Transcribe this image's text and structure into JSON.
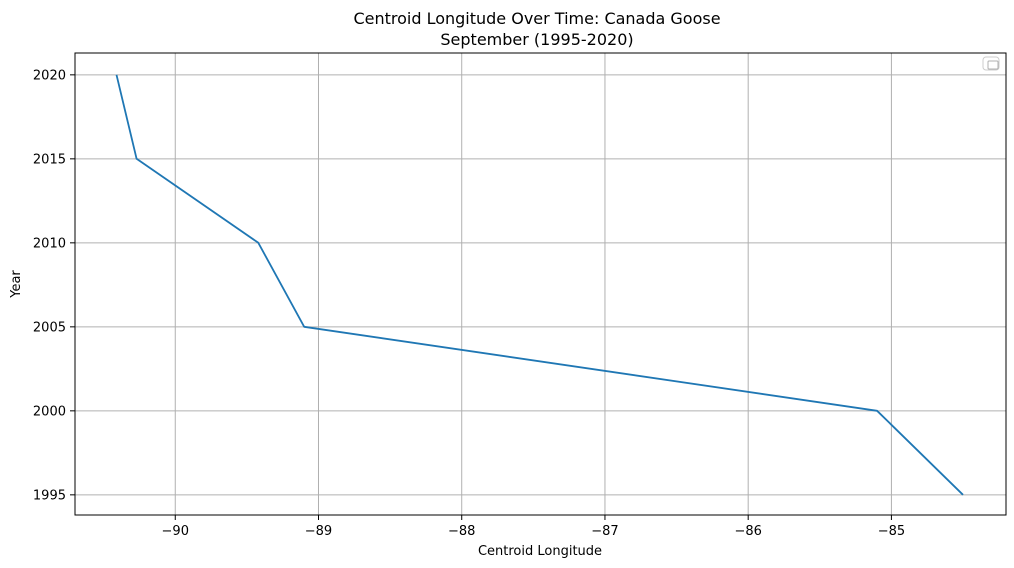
{
  "chart_data": {
    "type": "line",
    "title_line1": "Centroid Longitude Over Time: Canada Goose",
    "title_line2": "September (1995-2020)",
    "xlabel": "Centroid Longitude",
    "ylabel": "Year",
    "xlim": [
      -90.7,
      -84.2
    ],
    "ylim": [
      1993.8,
      2021.3
    ],
    "xticks": [
      -90,
      -89,
      -88,
      -87,
      -86,
      -85
    ],
    "xtick_labels": [
      "−90",
      "−89",
      "−88",
      "−87",
      "−86",
      "−85"
    ],
    "yticks": [
      1995,
      2000,
      2005,
      2010,
      2015,
      2020
    ],
    "ytick_labels": [
      "1995",
      "2000",
      "2005",
      "2010",
      "2015",
      "2020"
    ],
    "grid": true,
    "legend": {
      "placement": "upper right",
      "entries": []
    },
    "series": [
      {
        "color": "#1f77b4",
        "x": [
          -84.5,
          -85.1,
          -89.1,
          -89.42,
          -90.27,
          -90.41
        ],
        "y": [
          1995,
          2000,
          2005,
          2010,
          2015,
          2020
        ]
      }
    ]
  }
}
